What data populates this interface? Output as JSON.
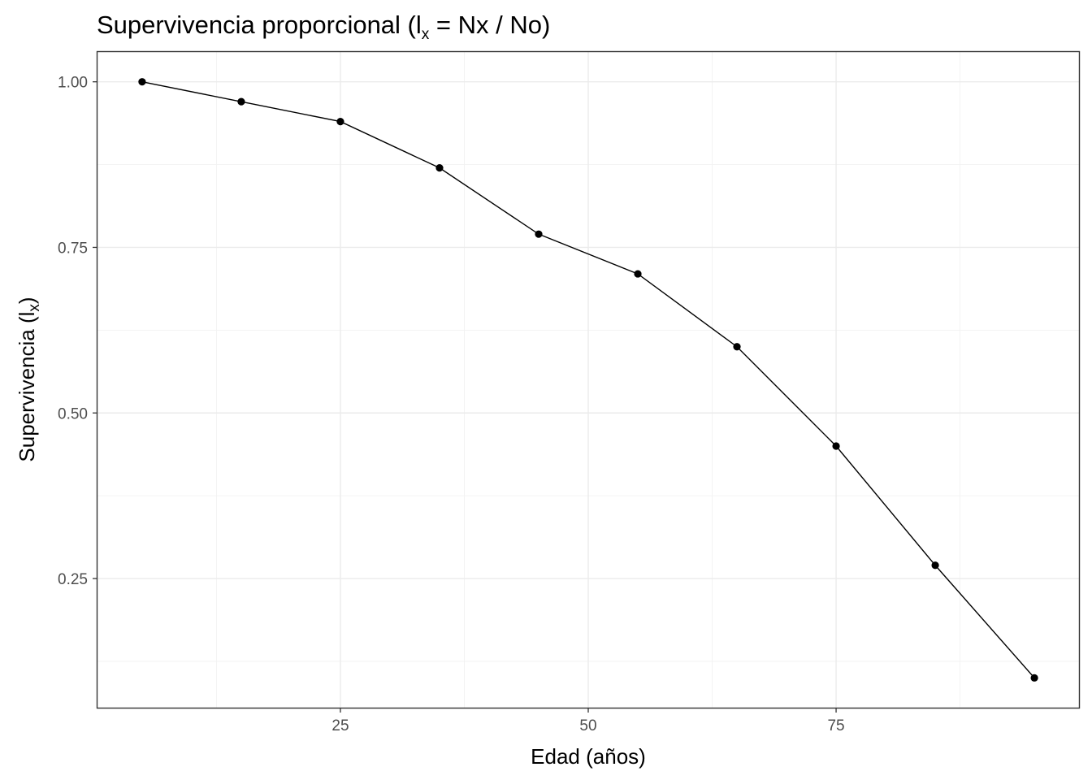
{
  "chart_data": {
    "type": "line",
    "title": "Supervivencia proporcional (lx = Nx / No)",
    "title_parts": {
      "before": "Supervivencia proporcional (l",
      "sub": "x",
      "after": " = Nx / No)"
    },
    "xlabel": "Edad (años)",
    "ylabel": "Supervivencia (lx)",
    "ylabel_parts": {
      "before": "Supervivencia (l",
      "sub": "x",
      "after": ")"
    },
    "x": [
      5,
      15,
      25,
      35,
      45,
      55,
      65,
      75,
      85,
      95
    ],
    "y": [
      1.0,
      0.97,
      0.94,
      0.87,
      0.77,
      0.71,
      0.6,
      0.45,
      0.27,
      0.1
    ],
    "xlim": [
      0.5,
      99.5
    ],
    "ylim": [
      0.055,
      1.045
    ],
    "x_ticks": [
      25,
      50,
      75
    ],
    "x_tick_labels": [
      "25",
      "50",
      "75"
    ],
    "x_minor": [
      12.5,
      37.5,
      62.5,
      87.5
    ],
    "y_ticks": [
      0.25,
      0.5,
      0.75,
      1.0
    ],
    "y_tick_labels": [
      "0.25",
      "0.50",
      "0.75",
      "1.00"
    ],
    "y_minor": [
      0.125,
      0.375,
      0.625,
      0.875
    ],
    "grid": true,
    "legend": "none",
    "theme": "bw",
    "line_color": "#000000",
    "point_color": "#000000"
  }
}
